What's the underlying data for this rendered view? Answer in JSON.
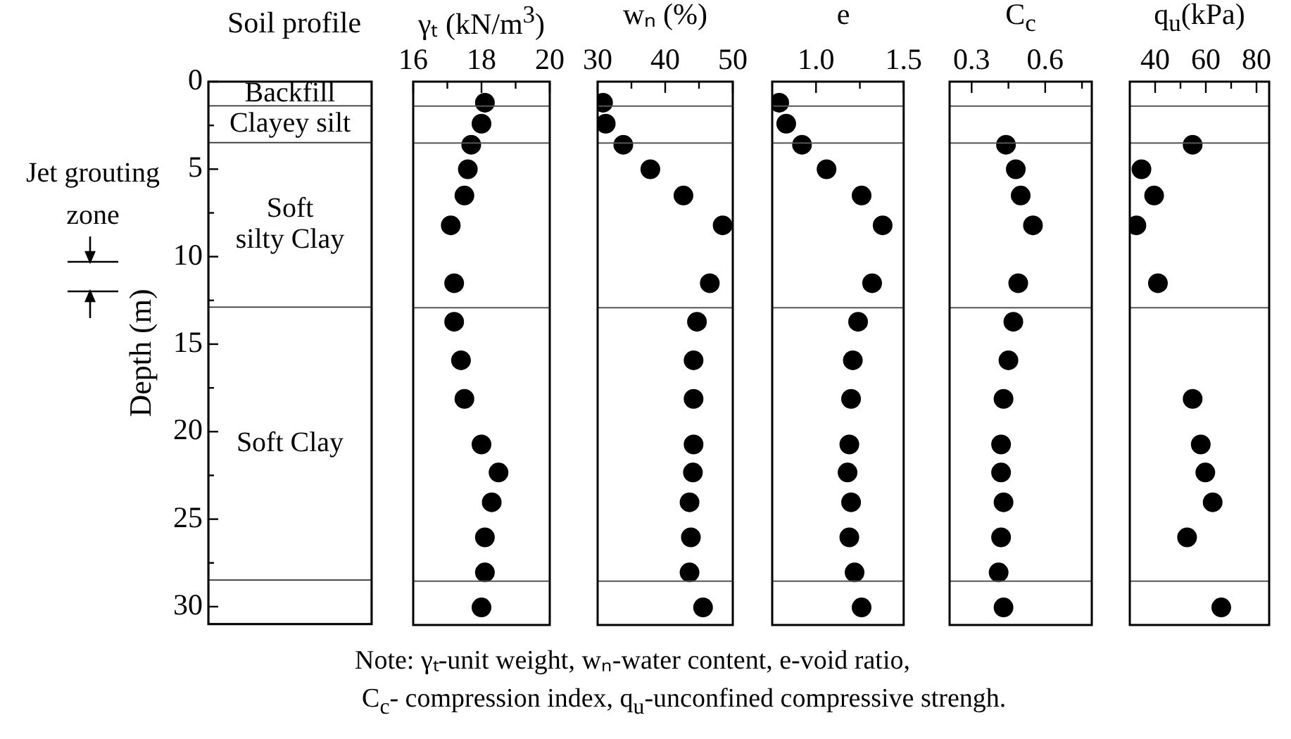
{
  "chart_data": [
    {
      "type": "bar",
      "stacked": true,
      "title": "Soil profile",
      "ylabel": "Depth (m)",
      "ylim": [
        31,
        0
      ],
      "categories": [
        null
      ],
      "series": [
        {
          "name": "Backfill",
          "color": "#ffffff",
          "values": [
            1.4
          ]
        },
        {
          "name": "Clayey silt",
          "color": "#ffffff",
          "values": [
            2.1
          ]
        },
        {
          "name": "Soft\nsilty Clay",
          "color": "#ffffff",
          "values": [
            9.4
          ]
        },
        {
          "name": "Soft Clay",
          "color": "#ffffff",
          "values": [
            15.6
          ]
        },
        {
          "color": "#ffffff",
          "values": [
            2.5
          ]
        }
      ],
      "yticks": [
        0,
        {
          "value": 2.5,
          "label": null
        },
        5,
        {
          "value": 7.5,
          "label": null
        },
        10,
        {
          "value": 12.5,
          "label": null
        },
        15,
        {
          "value": 17.5,
          "label": null
        },
        20,
        {
          "value": 22.5,
          "label": null
        },
        25,
        {
          "value": 27.5,
          "label": null
        },
        30
      ],
      "annotations": [
        "Jet grouting zone",
        "Note: γₜ-unit weight,  wₙ-water content, e-void ratio,",
        "C$_{c}$- compression index, q$_{u}$-unconfined compressive strengh."
      ]
    },
    {
      "type": "scatter",
      "title": "γₜ (kN/m$^{3}$)",
      "color": "#000000",
      "marker": "circle",
      "tick_labels": "x",
      "x": [
        18.1,
        18.0,
        17.7,
        17.6,
        17.5,
        17.1,
        17.2,
        17.2,
        17.4,
        17.5,
        18.0,
        18.5,
        18.3,
        18.1,
        18.1,
        18.0
      ],
      "values": [
        1.2,
        2.4,
        3.6,
        5.0,
        6.5,
        8.2,
        11.5,
        13.7,
        15.9,
        18.1,
        20.7,
        22.3,
        24.0,
        26.0,
        28.0,
        30.0
      ],
      "xlim": [
        16,
        20
      ],
      "xticks": [
        16,
        {
          "value": 17,
          "label": null
        },
        18,
        {
          "value": 19,
          "label": null
        },
        20
      ],
      "ylim": [
        31,
        0
      ],
      "ref_lines": [
        {
          "axis": "y",
          "value": 1.4
        },
        {
          "axis": "y",
          "value": 3.5
        },
        {
          "axis": "y",
          "value": 12.9
        },
        {
          "axis": "y",
          "value": 28.5
        }
      ]
    },
    {
      "type": "scatter",
      "title": "wₙ (%)",
      "color": "#000000",
      "marker": "circle",
      "tick_labels": "x",
      "x": [
        30.8,
        31.2,
        33.8,
        37.8,
        42.7,
        48.5,
        46.6,
        44.7,
        44.2,
        44.2,
        44.2,
        44.1,
        43.6,
        43.8,
        43.6,
        45.6
      ],
      "values": [
        1.2,
        2.4,
        3.6,
        5.0,
        6.5,
        8.2,
        11.5,
        13.7,
        15.9,
        18.1,
        20.7,
        22.3,
        24.0,
        26.0,
        28.0,
        30.0
      ],
      "xlim": [
        30,
        50
      ],
      "xticks": [
        30,
        {
          "value": 35,
          "label": null
        },
        40,
        {
          "value": 45,
          "label": null
        },
        50
      ],
      "ylim": [
        31,
        0
      ],
      "ref_lines": [
        {
          "axis": "y",
          "value": 1.4
        },
        {
          "axis": "y",
          "value": 3.5
        },
        {
          "axis": "y",
          "value": 12.9
        },
        {
          "axis": "y",
          "value": 28.5
        }
      ]
    },
    {
      "type": "scatter",
      "title": "e",
      "color": "#000000",
      "marker": "circle",
      "tick_labels": "x",
      "x": [
        0.79,
        0.83,
        0.92,
        1.06,
        1.26,
        1.38,
        1.32,
        1.24,
        1.21,
        1.2,
        1.19,
        1.18,
        1.2,
        1.19,
        1.22,
        1.26
      ],
      "values": [
        1.2,
        2.4,
        3.6,
        5.0,
        6.5,
        8.2,
        11.5,
        13.7,
        15.9,
        18.1,
        20.7,
        22.3,
        24.0,
        26.0,
        28.0,
        30.0
      ],
      "xlim": [
        0.75,
        1.5
      ],
      "xticks": [
        {
          "value": 1,
          "label": "1.0"
        },
        {
          "value": 1.25,
          "label": null
        },
        1.5
      ],
      "ylim": [
        31,
        0
      ],
      "ref_lines": [
        {
          "axis": "y",
          "value": 1.4
        },
        {
          "axis": "y",
          "value": 3.5
        },
        {
          "axis": "y",
          "value": 12.9
        },
        {
          "axis": "y",
          "value": 28.5
        }
      ]
    },
    {
      "type": "scatter",
      "title": "C$_{c}$",
      "color": "#000000",
      "marker": "circle",
      "tick_labels": "x",
      "x": [
        0.44,
        0.48,
        0.5,
        0.55,
        0.49,
        0.47,
        0.45,
        0.43,
        0.42,
        0.42,
        0.43,
        0.42,
        0.41,
        0.43
      ],
      "values": [
        3.6,
        5.0,
        6.5,
        8.2,
        11.5,
        13.7,
        15.9,
        18.1,
        20.7,
        22.3,
        24.0,
        26.0,
        28.0,
        30.0
      ],
      "xlim": [
        0.21,
        0.79
      ],
      "xticks": [
        0.3,
        {
          "value": 0.45,
          "label": null
        },
        0.6,
        {
          "value": 0.75,
          "label": null
        }
      ],
      "ylim": [
        31,
        0
      ],
      "ref_lines": [
        {
          "axis": "y",
          "value": 1.4
        },
        {
          "axis": "y",
          "value": 3.5
        },
        {
          "axis": "y",
          "value": 12.9
        },
        {
          "axis": "y",
          "value": 28.5
        }
      ]
    },
    {
      "type": "scatter",
      "title": "q$_{u}$(kPa)",
      "color": "#000000",
      "marker": "circle",
      "tick_labels": "x",
      "x": [
        54.8,
        34.6,
        39.6,
        32.6,
        41.1,
        54.8,
        58.0,
        59.8,
        62.7,
        52.6,
        66.1
      ],
      "values": [
        3.6,
        5.0,
        6.5,
        8.2,
        11.5,
        18.1,
        20.7,
        22.3,
        24.0,
        26.0,
        30.0
      ],
      "xlim": [
        30,
        85
      ],
      "xticks": [
        40,
        {
          "value": 50,
          "label": null
        },
        60,
        {
          "value": 70,
          "label": null
        },
        80
      ],
      "ylim": [
        31,
        0
      ],
      "ref_lines": [
        {
          "axis": "y",
          "value": 1.4
        },
        {
          "axis": "y",
          "value": 3.5
        },
        {
          "axis": "y",
          "value": 12.9
        },
        {
          "axis": "y",
          "value": 28.5
        }
      ]
    }
  ]
}
